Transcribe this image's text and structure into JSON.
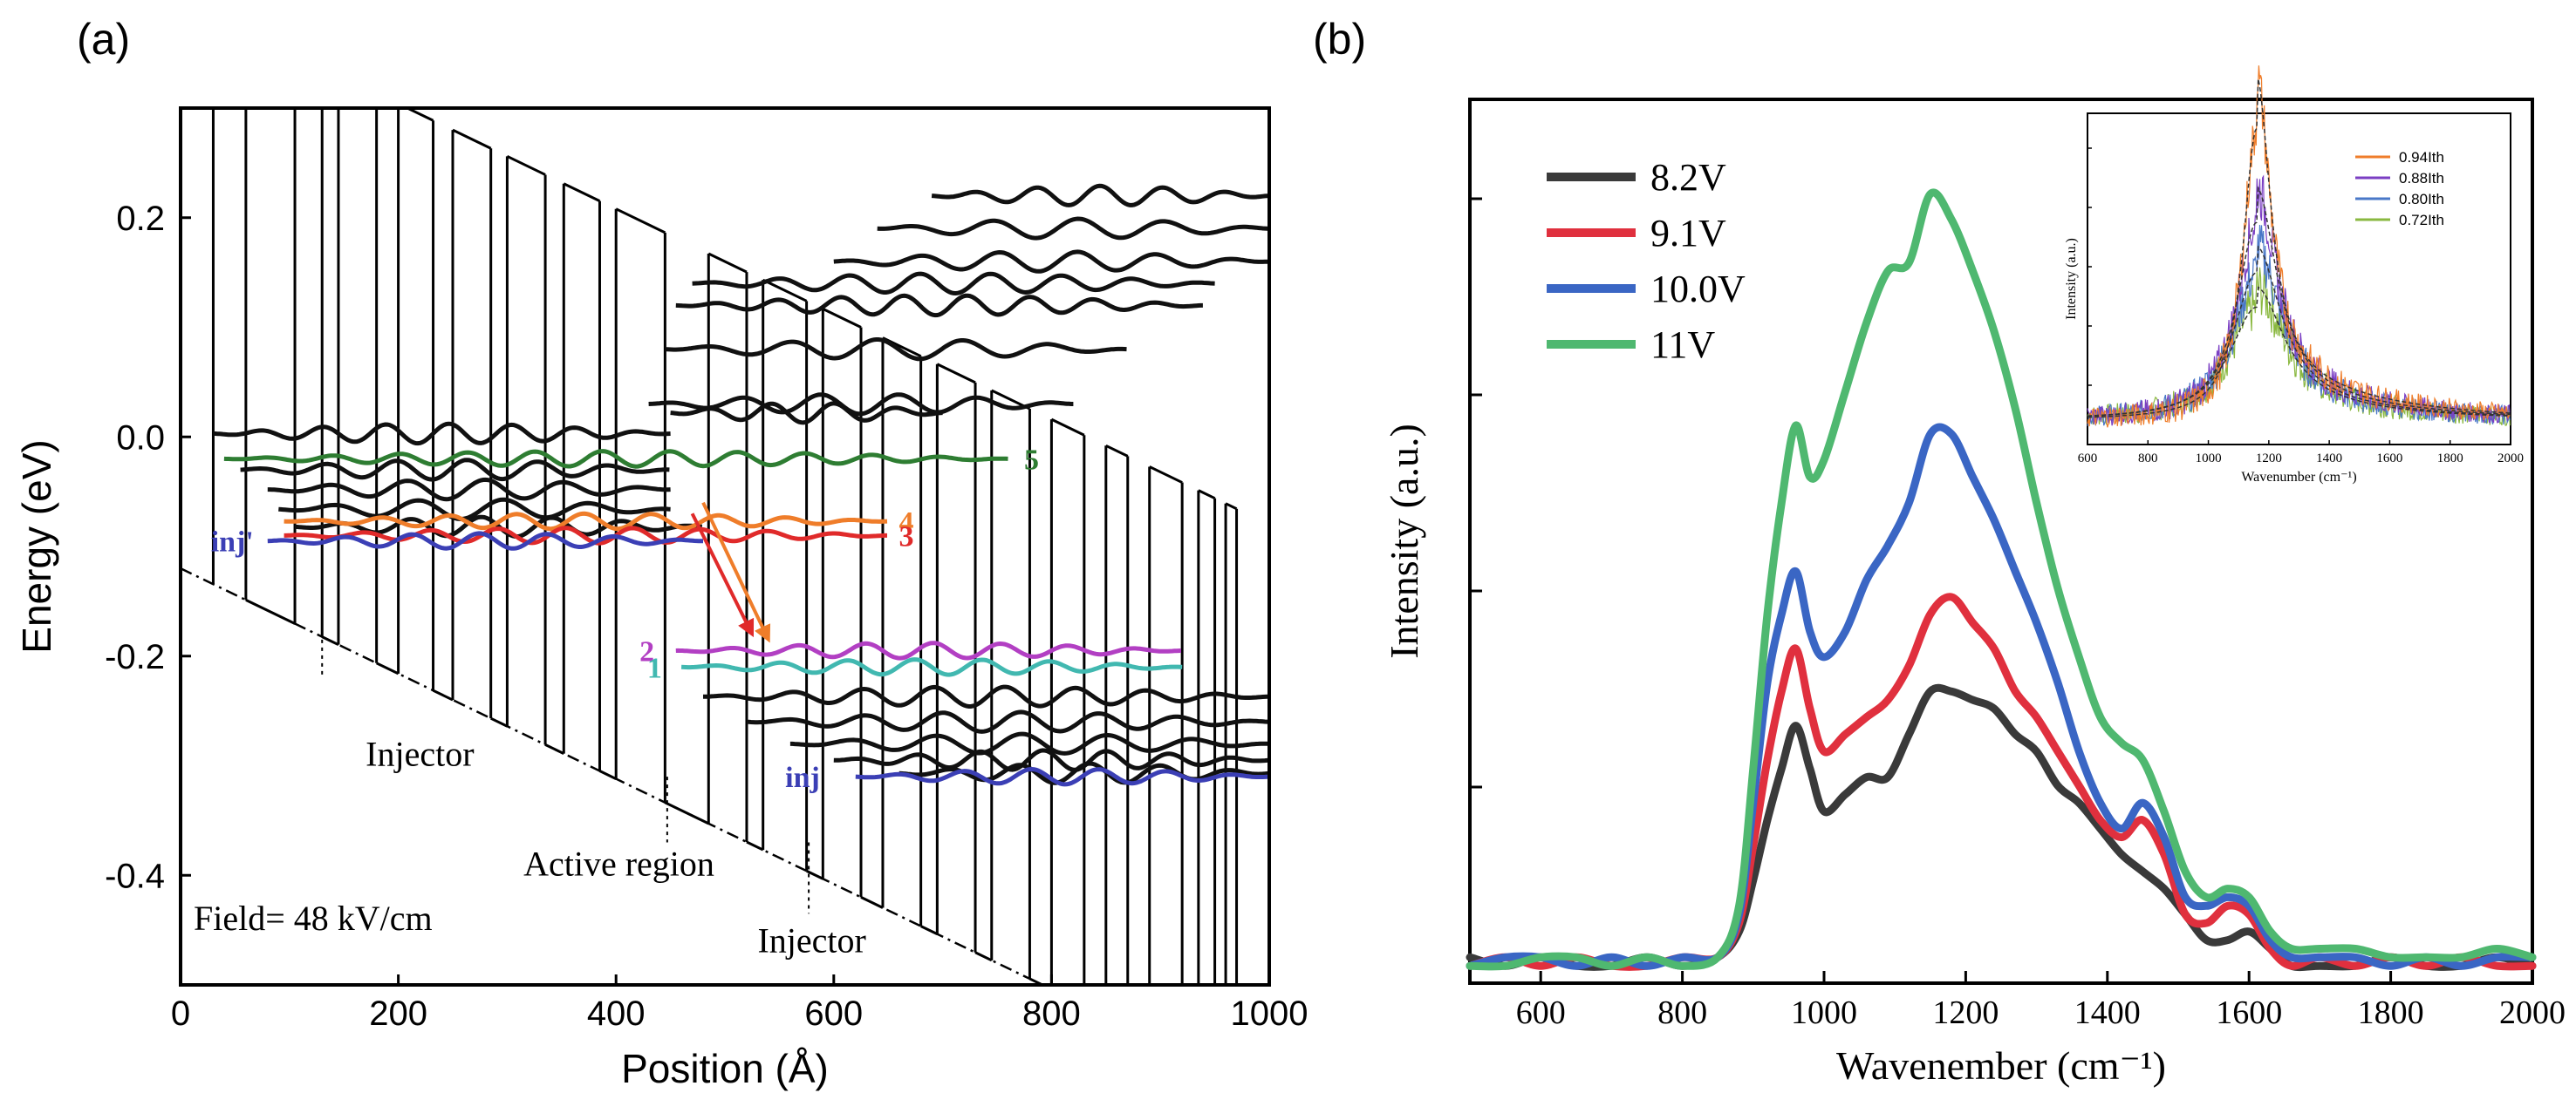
{
  "figure": {
    "panels": [
      {
        "id": "a",
        "label": "(a)"
      },
      {
        "id": "b",
        "label": "(b)"
      }
    ]
  },
  "chart_data": [
    {
      "panel": "(a)",
      "type": "line",
      "title": "",
      "xlabel": "Position (Å)",
      "ylabel": "Energy (eV)",
      "xlim": [
        0,
        1000
      ],
      "ylim": [
        -0.5,
        0.3
      ],
      "x_ticks": [
        0,
        200,
        400,
        600,
        800,
        1000
      ],
      "y_ticks": [
        0.2,
        0.0,
        -0.2,
        -0.4
      ],
      "y_tick_labels": [
        "0.2",
        "0.0",
        "-0.2",
        "-0.4"
      ],
      "field_slope_eV_per_A": -0.00048,
      "barrier_height_eV": 0.52,
      "barrier_positions": [
        30,
        60,
        105,
        130,
        145,
        180,
        200,
        232,
        250,
        285,
        300,
        335,
        352,
        385,
        400,
        445,
        485,
        520,
        535,
        575,
        590,
        625,
        645,
        680,
        695,
        730,
        745,
        780,
        800,
        830,
        850,
        870,
        890,
        920,
        935,
        950,
        960,
        970
      ],
      "region_boundaries": [
        {
          "x": 130,
          "y_top": -0.185,
          "y_bottom": -0.19
        },
        {
          "x": 447,
          "y_top": -0.31,
          "y_bottom": -0.34
        },
        {
          "x": 577,
          "y_top": -0.37,
          "y_bottom": -0.405
        }
      ],
      "annotations": [
        {
          "text": "Injector",
          "x": 170,
          "y": -0.3
        },
        {
          "text": "Active region",
          "x": 315,
          "y": -0.4
        },
        {
          "text": "Injector",
          "x": 530,
          "y": -0.47
        },
        {
          "text": "Field= 48 kV/cm",
          "x": 12,
          "y": -0.45
        }
      ],
      "states": [
        {
          "label": "5",
          "color": "#2e7d32",
          "y": -0.02,
          "x": [
            40,
            760
          ],
          "label_x": 770
        },
        {
          "label": "4",
          "color": "#ef7d2a",
          "y": -0.077,
          "x": [
            95,
            650
          ],
          "label_x": 655
        },
        {
          "label": "3",
          "color": "#e02a2a",
          "y": -0.09,
          "x": [
            95,
            650
          ],
          "label_x": 655
        },
        {
          "label": "inj'",
          "color": "#3b3fb5",
          "y": -0.095,
          "x": [
            80,
            480
          ],
          "label_x": 72
        },
        {
          "label": "2",
          "color": "#b23fc3",
          "y": -0.195,
          "x": [
            455,
            920
          ],
          "label_x": 440
        },
        {
          "label": "1",
          "color": "#41b8b0",
          "y": -0.21,
          "x": [
            460,
            920
          ],
          "label_x": 447
        },
        {
          "label": "inj",
          "color": "#3b3fb5",
          "y": -0.31,
          "x": [
            620,
            1000
          ],
          "label_x": 592
        }
      ],
      "black_states": [
        {
          "y": 0.003,
          "x": [
            30,
            450
          ]
        },
        {
          "y": -0.03,
          "x": [
            55,
            450
          ]
        },
        {
          "y": -0.048,
          "x": [
            80,
            450
          ]
        },
        {
          "y": -0.066,
          "x": [
            90,
            450
          ]
        },
        {
          "y": 0.022,
          "x": [
            450,
            700
          ]
        },
        {
          "y": -0.082,
          "x": [
            105,
            480
          ]
        },
        {
          "y": 0.03,
          "x": [
            430,
            820
          ]
        },
        {
          "y": 0.08,
          "x": [
            445,
            870
          ]
        },
        {
          "y": 0.12,
          "x": [
            455,
            940
          ]
        },
        {
          "y": 0.14,
          "x": [
            470,
            950
          ]
        },
        {
          "y": 0.16,
          "x": [
            600,
            1000
          ]
        },
        {
          "y": 0.19,
          "x": [
            640,
            1000
          ]
        },
        {
          "y": 0.22,
          "x": [
            690,
            1000
          ]
        },
        {
          "y": -0.237,
          "x": [
            480,
            1000
          ]
        },
        {
          "y": -0.26,
          "x": [
            520,
            1000
          ]
        },
        {
          "y": -0.28,
          "x": [
            560,
            1000
          ]
        },
        {
          "y": -0.295,
          "x": [
            600,
            1000
          ]
        },
        {
          "y": -0.307,
          "x": [
            660,
            1000
          ]
        }
      ],
      "transitions": [
        {
          "from": [
            480,
            -0.06
          ],
          "to": [
            540,
            -0.185
          ],
          "color": "#ef7d2a"
        },
        {
          "from": [
            470,
            -0.07
          ],
          "to": [
            525,
            -0.18
          ],
          "color": "#e02a2a"
        }
      ]
    },
    {
      "panel": "(b)",
      "type": "line",
      "title": "",
      "xlabel": "Wavenember (cm⁻¹)",
      "ylabel": "Intensity (a.u.)",
      "xlim": [
        500,
        2000
      ],
      "ylim": [
        0,
        1
      ],
      "x_ticks": [
        600,
        800,
        1000,
        1200,
        1400,
        1600,
        1800,
        2000
      ],
      "legend_position": "top-left",
      "x": [
        500,
        550,
        600,
        650,
        700,
        750,
        800,
        850,
        880,
        900,
        920,
        940,
        960,
        980,
        1000,
        1030,
        1060,
        1090,
        1120,
        1150,
        1180,
        1210,
        1240,
        1270,
        1300,
        1330,
        1360,
        1390,
        1420,
        1450,
        1480,
        1510,
        1540,
        1570,
        1600,
        1630,
        1660,
        1700,
        1750,
        1800,
        1850,
        1900,
        1950,
        2000
      ],
      "series": [
        {
          "name": "8.2V",
          "color": "#3a3a3a",
          "values": [
            0.02,
            0.01,
            0.02,
            0.01,
            0.01,
            0.02,
            0.01,
            0.02,
            0.05,
            0.11,
            0.18,
            0.24,
            0.29,
            0.24,
            0.19,
            0.21,
            0.23,
            0.23,
            0.28,
            0.33,
            0.33,
            0.32,
            0.31,
            0.28,
            0.26,
            0.22,
            0.2,
            0.17,
            0.14,
            0.12,
            0.1,
            0.07,
            0.04,
            0.04,
            0.05,
            0.03,
            0.01,
            0.01,
            0.01,
            0.02,
            0.01,
            0.01,
            0.02,
            0.01
          ]
        },
        {
          "name": "9.1V",
          "color": "#e0303e",
          "values": [
            0.01,
            0.02,
            0.01,
            0.02,
            0.01,
            0.01,
            0.02,
            0.02,
            0.06,
            0.15,
            0.25,
            0.33,
            0.38,
            0.31,
            0.26,
            0.28,
            0.3,
            0.32,
            0.36,
            0.42,
            0.44,
            0.41,
            0.38,
            0.33,
            0.3,
            0.26,
            0.22,
            0.18,
            0.16,
            0.18,
            0.14,
            0.07,
            0.06,
            0.08,
            0.07,
            0.03,
            0.01,
            0.02,
            0.01,
            0.02,
            0.01,
            0.02,
            0.01,
            0.01
          ]
        },
        {
          "name": "10.0V",
          "color": "#3a66c4",
          "values": [
            0.01,
            0.02,
            0.02,
            0.01,
            0.02,
            0.01,
            0.02,
            0.02,
            0.07,
            0.2,
            0.34,
            0.42,
            0.47,
            0.4,
            0.37,
            0.4,
            0.46,
            0.5,
            0.55,
            0.63,
            0.63,
            0.58,
            0.53,
            0.47,
            0.41,
            0.34,
            0.26,
            0.2,
            0.17,
            0.2,
            0.16,
            0.09,
            0.08,
            0.09,
            0.08,
            0.04,
            0.02,
            0.02,
            0.02,
            0.01,
            0.02,
            0.01,
            0.02,
            0.02
          ]
        },
        {
          "name": "11V",
          "color": "#4fb870",
          "values": [
            0.01,
            0.01,
            0.02,
            0.02,
            0.01,
            0.02,
            0.01,
            0.02,
            0.08,
            0.24,
            0.42,
            0.55,
            0.64,
            0.58,
            0.6,
            0.68,
            0.76,
            0.82,
            0.83,
            0.91,
            0.88,
            0.82,
            0.75,
            0.66,
            0.55,
            0.45,
            0.37,
            0.3,
            0.27,
            0.25,
            0.19,
            0.12,
            0.09,
            0.1,
            0.09,
            0.05,
            0.03,
            0.03,
            0.03,
            0.02,
            0.02,
            0.02,
            0.03,
            0.02
          ]
        }
      ],
      "inset": {
        "xlabel": "Wavenumber (cm⁻¹)",
        "ylabel": "Intensity (a.u.)",
        "xlim": [
          600,
          2000
        ],
        "ylim": [
          0,
          1
        ],
        "x_ticks": [
          600,
          800,
          1000,
          1200,
          1400,
          1600,
          1800,
          2000
        ],
        "legend_position": "top-right",
        "series": [
          {
            "name": "0.94Ith",
            "color": "#ef7d2a",
            "peak": 0.93,
            "width": 55
          },
          {
            "name": "0.88Ith",
            "color": "#7b3fc3",
            "peak": 0.63,
            "width": 80
          },
          {
            "name": "0.80Ith",
            "color": "#4a78c8",
            "peak": 0.47,
            "width": 95
          },
          {
            "name": "0.72Ith",
            "color": "#8ab840",
            "peak": 0.36,
            "width": 110
          }
        ],
        "fit_color": "#333333"
      }
    }
  ]
}
